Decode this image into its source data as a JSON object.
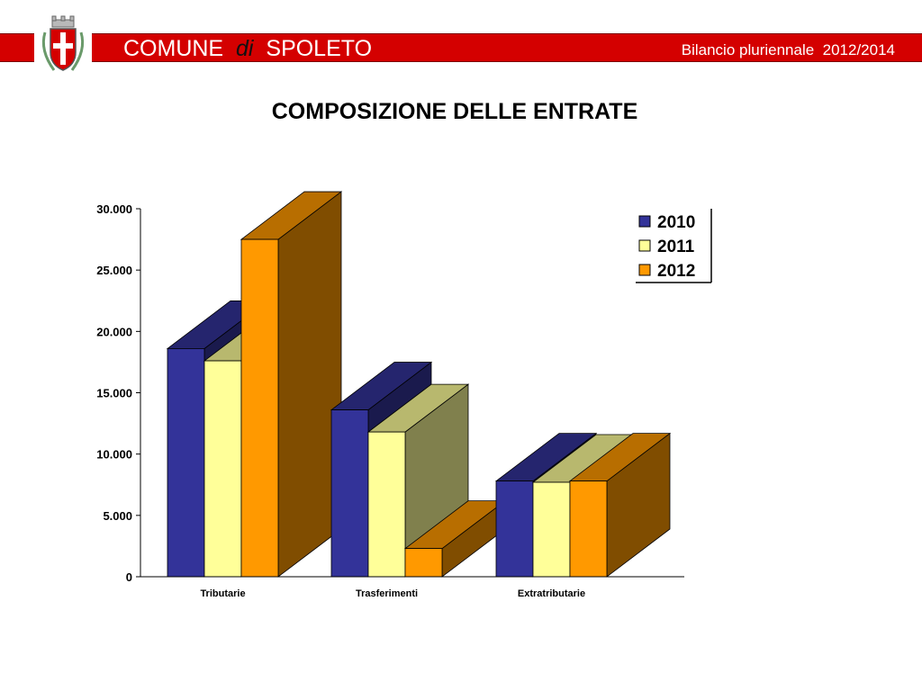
{
  "header": {
    "org_prefix": "COMUNE",
    "org_connector": "di",
    "org_name": "SPOLETO",
    "report_label": "Bilancio pluriennale  2012/2014",
    "bar_color": "#d40000",
    "crest_icon": "coat-of-arms-icon"
  },
  "chart_data": {
    "type": "bar",
    "title": "COMPOSIZIONE DELLE ENTRATE",
    "categories": [
      "Tributarie",
      "Trasferimenti",
      "Extratributarie"
    ],
    "series": [
      {
        "name": "2010",
        "values": [
          18600,
          13600,
          7800
        ],
        "color": "#333399"
      },
      {
        "name": "2011",
        "values": [
          17600,
          11800,
          7700
        ],
        "color": "#ffff99"
      },
      {
        "name": "2012",
        "values": [
          27500,
          2300,
          7800
        ],
        "color": "#ff9900"
      }
    ],
    "y_ticks": [
      "0",
      "5.000",
      "10.000",
      "15.000",
      "20.000",
      "25.000",
      "30.000"
    ],
    "ylim": [
      0,
      30000
    ],
    "three_d": true,
    "legend_position": "top-right",
    "grid": false
  }
}
